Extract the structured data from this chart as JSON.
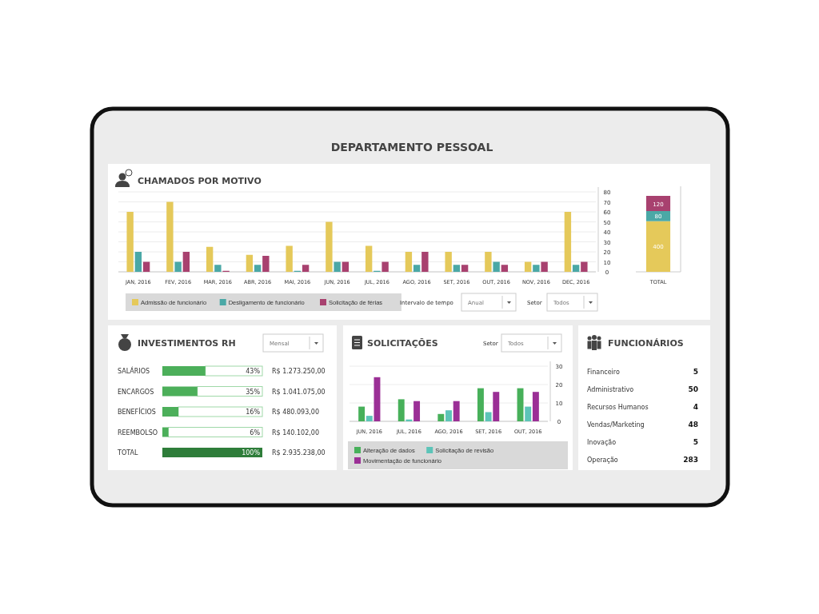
{
  "chart_data": [
    {
      "type": "other",
      "title": "DEPARTAMENTO PESSOAL"
    },
    {
      "type": "bar",
      "title": "CHAMADOS POR MOTIVO",
      "categories": [
        "JAN, 2016",
        "FEV, 2016",
        "MAR, 2016",
        "ABR, 2016",
        "MAI, 2016",
        "JUN, 2016",
        "JUL, 2016",
        "AGO, 2016",
        "SET, 2016",
        "OUT, 2016",
        "NOV, 2016",
        "DEC, 2016"
      ],
      "series": [
        {
          "name": "Admissão de funcionário",
          "color": "#e5c95a",
          "values": [
            60,
            70,
            25,
            17,
            26,
            50,
            26,
            20,
            20,
            20,
            10,
            60
          ]
        },
        {
          "name": "Desligamento de funcionário",
          "color": "#4aa8a6",
          "values": [
            20,
            10,
            7,
            7,
            1,
            10,
            1,
            7,
            7,
            10,
            7,
            7
          ]
        },
        {
          "name": "Solicitação de férias",
          "color": "#a8416f",
          "values": [
            10,
            20,
            1,
            16,
            7,
            10,
            10,
            20,
            7,
            7,
            10,
            10
          ]
        }
      ],
      "ylim": [
        0,
        80
      ],
      "yticks": [
        0,
        10,
        20,
        30,
        40,
        50,
        60,
        70,
        80
      ],
      "grid": "y",
      "legend": "bottom",
      "annotations": [
        "Intervalo de tempo",
        "Anual",
        "Setor",
        "Todos"
      ]
    },
    {
      "type": "bar",
      "stacked": true,
      "categories": [
        "TOTAL"
      ],
      "series": [
        {
          "color": "#e5c95a",
          "values": [
            400
          ]
        },
        {
          "color": "#4aa8a6",
          "values": [
            80
          ]
        },
        {
          "color": "#a8416f",
          "values": [
            120
          ]
        }
      ],
      "data_labels": true
    },
    {
      "type": "bar",
      "orientation": "horizontal",
      "title": "INVESTIMENTOS RH",
      "categories": [
        "SALÁRIOS",
        "ENCARGOS",
        "BENEFÍCIOS",
        "REEMBOLSO",
        "TOTAL"
      ],
      "values": [
        43,
        35,
        16,
        6,
        100
      ],
      "colors": [
        "#4caf5a",
        "#4caf5a",
        "#4caf5a",
        "#4caf5a",
        "#2e7d3a"
      ],
      "value_labels": [
        "43%",
        "35%",
        "16%",
        "6%",
        "100%"
      ],
      "xlim": [
        0,
        100
      ],
      "tick_labels": "y",
      "annotations": [
        "Mensal",
        "R$ 1.273.250,00",
        "R$ 1.041.075,00",
        "R$ 480.093,00",
        "R$ 140.102,00",
        "R$ 2.935.238,00"
      ]
    },
    {
      "type": "bar",
      "title": "SOLICITAÇÕES",
      "categories": [
        "JUN, 2016",
        "JUL, 2016",
        "AGO, 2016",
        "SET, 2016",
        "OUT, 2016"
      ],
      "series": [
        {
          "name": "Alteração de dados",
          "color": "#47b05a",
          "values": [
            8,
            12,
            4,
            18,
            18
          ]
        },
        {
          "name": "Solicitação de revisão",
          "color": "#5cc4b8",
          "values": [
            3,
            1,
            6,
            5,
            8
          ]
        },
        {
          "name": "Movimentação de funcionário",
          "color": "#9b2f96",
          "values": [
            24,
            11,
            11,
            16,
            16
          ]
        }
      ],
      "ylim": [
        0,
        30
      ],
      "yticks": [
        0,
        10,
        20,
        30
      ],
      "grid": "y",
      "legend": "bottom",
      "annotations": [
        "Setor",
        "Todos"
      ]
    },
    {
      "type": "other",
      "title": "FUNCIONÁRIOS",
      "categories": [
        "Financeiro",
        "Administrativo",
        "Recursos Humanos",
        "Vendas/Marketing",
        "Inovação",
        "Operação"
      ],
      "values": [
        5,
        50,
        4,
        48,
        5,
        283
      ],
      "data_labels": true
    }
  ]
}
